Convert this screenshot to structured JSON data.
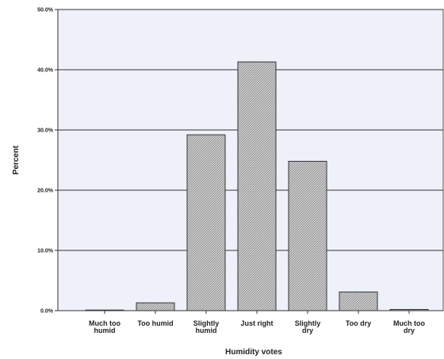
{
  "chart_data": {
    "type": "bar",
    "categories": [
      [
        "Much too",
        "humid"
      ],
      [
        "Too humid"
      ],
      [
        "Slightly",
        "humid"
      ],
      [
        "Just right"
      ],
      [
        "Slightly",
        "dry"
      ],
      [
        "Too dry"
      ],
      [
        "Much too",
        "dry"
      ]
    ],
    "values": [
      0.1,
      1.3,
      29.2,
      41.3,
      24.8,
      3.1,
      0.2
    ],
    "xlabel": "Humidity votes",
    "ylabel": "Percent",
    "ylim": [
      0,
      50
    ],
    "yticks": [
      {
        "value": 0,
        "label": "0.0%"
      },
      {
        "value": 10,
        "label": "10.0%"
      },
      {
        "value": 20,
        "label": "20.0%"
      },
      {
        "value": 30,
        "label": "30.0%"
      },
      {
        "value": 40,
        "label": "40.0%"
      },
      {
        "value": 50,
        "label": "50.0%"
      }
    ],
    "grid": true,
    "colors": {
      "plot_background": "#eef0fa",
      "bar_fill": "#c8c8c8",
      "bar_stroke": "#333333",
      "gridline": "#333333"
    }
  }
}
